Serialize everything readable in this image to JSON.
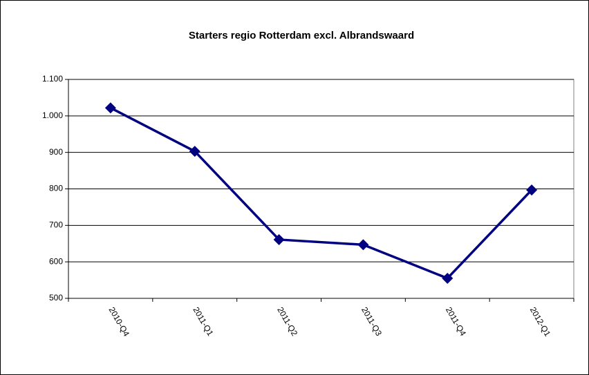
{
  "chart_data": {
    "type": "line",
    "title": "Starters regio Rotterdam excl. Albrandswaard",
    "categories": [
      "2010-Q4",
      "2011-Q1",
      "2011-Q2",
      "2011-Q3",
      "2011-Q4",
      "2012-Q1"
    ],
    "series": [
      {
        "color": "#000080",
        "values": [
          1022,
          903,
          661,
          647,
          555,
          797
        ]
      }
    ],
    "ylim": [
      500,
      1100
    ],
    "yticks": [
      500,
      600,
      700,
      800,
      900,
      {
        "value": 1000,
        "label": "1.000"
      },
      {
        "value": 1100,
        "label": "1.100"
      }
    ],
    "grid": true
  }
}
